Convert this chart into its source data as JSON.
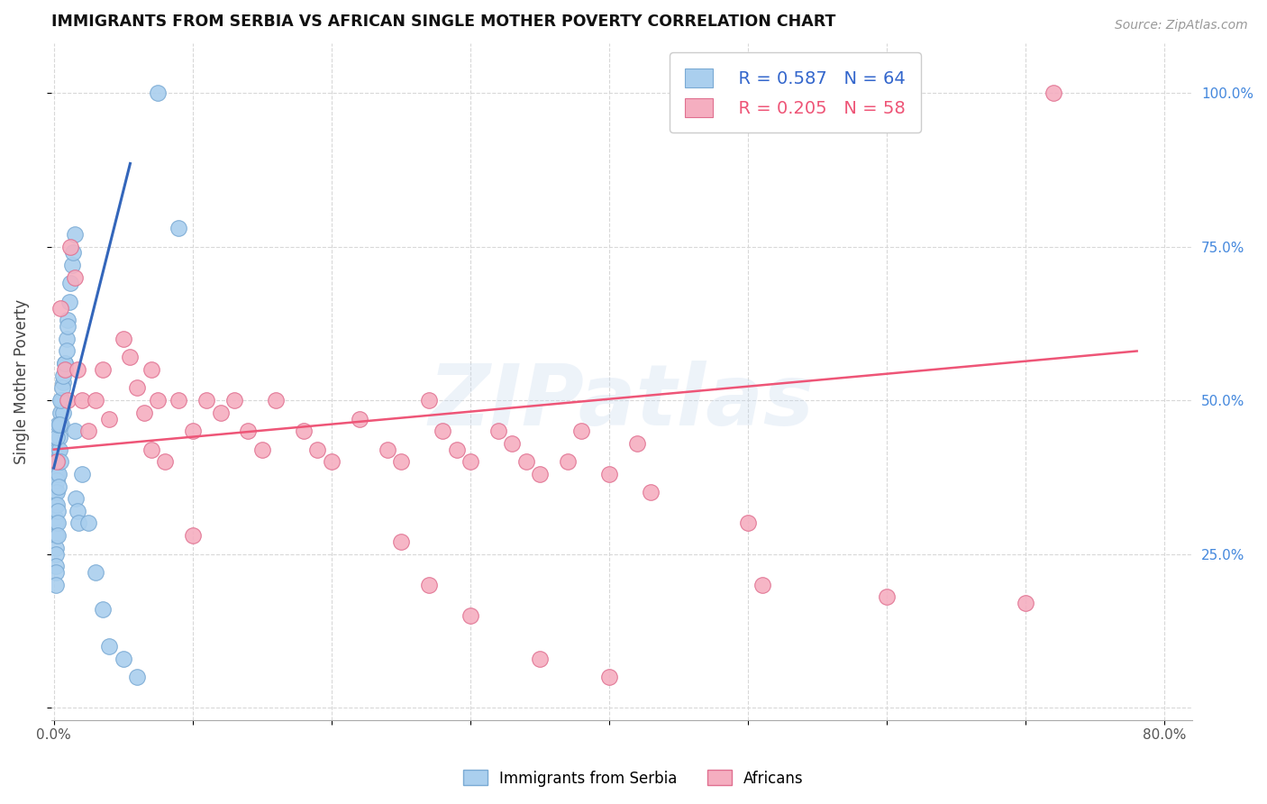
{
  "title": "IMMIGRANTS FROM SERBIA VS AFRICAN SINGLE MOTHER POVERTY CORRELATION CHART",
  "source": "Source: ZipAtlas.com",
  "ylabel": "Single Mother Poverty",
  "watermark": "ZIPatlas",
  "xmin": -0.002,
  "xmax": 0.82,
  "ymin": -0.02,
  "ymax": 1.08,
  "yticks": [
    0.0,
    0.25,
    0.5,
    0.75,
    1.0
  ],
  "yticklabels_right": [
    "",
    "25.0%",
    "50.0%",
    "75.0%",
    "100.0%"
  ],
  "grid_color": "#d8d8d8",
  "serbia_color": "#aacfee",
  "african_color": "#f5aec0",
  "serbia_edge": "#7aaad4",
  "african_edge": "#e07090",
  "trendline_serbia_color": "#3366bb",
  "trendline_african_color": "#ee5577",
  "legend_R_serbia": "R = 0.587",
  "legend_N_serbia": "N = 64",
  "legend_R_african": "R = 0.205",
  "legend_N_african": "N = 58",
  "serbia_x": [
    0.0005,
    0.0006,
    0.0007,
    0.0008,
    0.0009,
    0.001,
    0.0011,
    0.0012,
    0.0013,
    0.0014,
    0.0015,
    0.0016,
    0.0017,
    0.0018,
    0.002,
    0.0021,
    0.0022,
    0.0023,
    0.0024,
    0.0025,
    0.0026,
    0.0027,
    0.003,
    0.0031,
    0.0032,
    0.0035,
    0.004,
    0.0042,
    0.0045,
    0.005,
    0.0055,
    0.006,
    0.0065,
    0.007,
    0.008,
    0.009,
    0.01,
    0.011,
    0.012,
    0.013,
    0.014,
    0.015,
    0.016,
    0.017,
    0.018,
    0.002,
    0.003,
    0.004,
    0.005,
    0.006,
    0.007,
    0.008,
    0.009,
    0.01,
    0.015,
    0.02,
    0.025,
    0.03,
    0.035,
    0.04,
    0.05,
    0.06,
    0.075,
    0.09
  ],
  "serbia_y": [
    0.4,
    0.42,
    0.38,
    0.36,
    0.35,
    0.33,
    0.31,
    0.3,
    0.28,
    0.26,
    0.25,
    0.23,
    0.22,
    0.2,
    0.4,
    0.38,
    0.37,
    0.35,
    0.33,
    0.32,
    0.3,
    0.28,
    0.42,
    0.4,
    0.38,
    0.36,
    0.44,
    0.42,
    0.4,
    0.48,
    0.46,
    0.5,
    0.48,
    0.53,
    0.56,
    0.6,
    0.63,
    0.66,
    0.69,
    0.72,
    0.74,
    0.77,
    0.34,
    0.32,
    0.3,
    0.44,
    0.46,
    0.46,
    0.5,
    0.52,
    0.54,
    0.56,
    0.58,
    0.62,
    0.45,
    0.38,
    0.3,
    0.22,
    0.16,
    0.1,
    0.08,
    0.05,
    1.0,
    0.78
  ],
  "african_x": [
    0.002,
    0.005,
    0.008,
    0.01,
    0.012,
    0.015,
    0.017,
    0.02,
    0.025,
    0.03,
    0.035,
    0.04,
    0.05,
    0.055,
    0.06,
    0.065,
    0.07,
    0.075,
    0.08,
    0.09,
    0.1,
    0.11,
    0.12,
    0.13,
    0.14,
    0.15,
    0.16,
    0.18,
    0.19,
    0.2,
    0.22,
    0.24,
    0.25,
    0.27,
    0.28,
    0.29,
    0.3,
    0.32,
    0.33,
    0.34,
    0.35,
    0.38,
    0.4,
    0.42,
    0.43,
    0.5,
    0.51,
    0.6,
    0.7,
    0.72,
    0.07,
    0.1,
    0.25,
    0.27,
    0.3,
    0.35,
    0.4,
    0.37
  ],
  "african_y": [
    0.4,
    0.65,
    0.55,
    0.5,
    0.75,
    0.7,
    0.55,
    0.5,
    0.45,
    0.5,
    0.55,
    0.47,
    0.6,
    0.57,
    0.52,
    0.48,
    0.42,
    0.5,
    0.4,
    0.5,
    0.45,
    0.5,
    0.48,
    0.5,
    0.45,
    0.42,
    0.5,
    0.45,
    0.42,
    0.4,
    0.47,
    0.42,
    0.4,
    0.5,
    0.45,
    0.42,
    0.4,
    0.45,
    0.43,
    0.4,
    0.38,
    0.45,
    0.38,
    0.43,
    0.35,
    0.3,
    0.2,
    0.18,
    0.17,
    1.0,
    0.55,
    0.28,
    0.27,
    0.2,
    0.15,
    0.08,
    0.05,
    0.4
  ],
  "serbia_trend_x": [
    0.0,
    0.055
  ],
  "serbia_trend_y_intercept": 0.39,
  "serbia_trend_slope": 9.0,
  "african_trend_x": [
    0.0,
    0.78
  ],
  "african_trend_y_start": 0.42,
  "african_trend_y_end": 0.58
}
